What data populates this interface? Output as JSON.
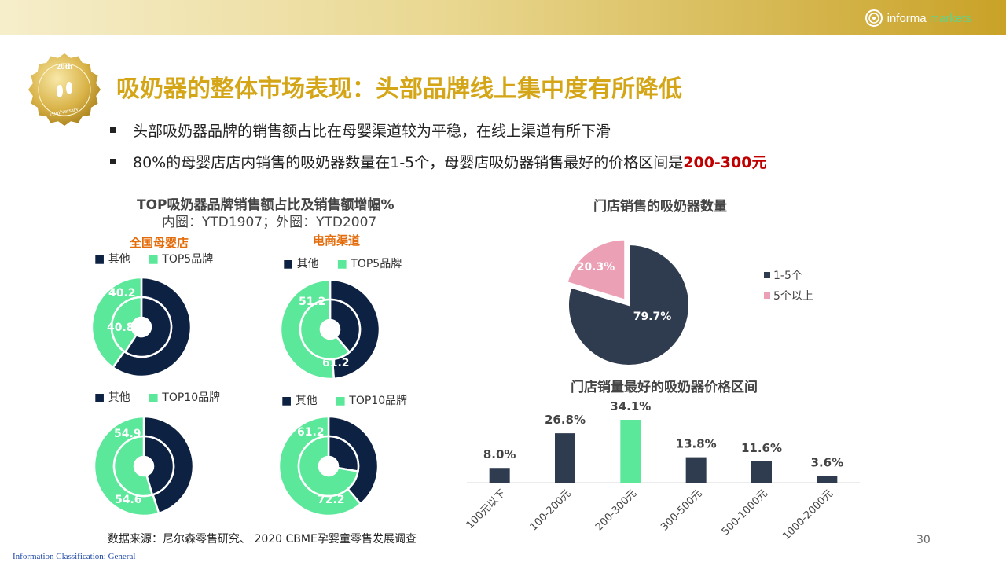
{
  "header": {
    "brand_part1": "informa",
    "brand_part2": "markets",
    "badge_text_top": "20th",
    "badge_text_bottom": "Anniversary"
  },
  "slide": {
    "title": "吸奶器的整体市场表现：头部品牌线上集中度有所降低",
    "bullet1": "头部吸奶器品牌的销售额占比在母婴渠道较为平稳，在线上渠道有所下滑",
    "bullet2_pre": "80%的母婴店店内销售的吸奶器数量在1-5个，母婴店吸奶器销售最好的价格区间是",
    "bullet2_hl": "200-300元",
    "source": "数据来源：尼尔森零售研究、 2020 CBME孕婴童零售发展调查",
    "page_number": "30",
    "classification": "Information Classification: General"
  },
  "donut_section": {
    "title": "TOP吸奶器品牌销售额占比及销售额增幅%",
    "subtitle": "内圈：YTD1907；外圈：YTD2007",
    "col1_label": "全国母婴店",
    "col2_label": "电商渠道",
    "legend_other": "其他",
    "legend_top5": "TOP5品牌",
    "legend_top10": "TOP10品牌"
  },
  "colors": {
    "navy": "#0d2143",
    "mint": "#5ce89a",
    "pink": "#eba0b5",
    "slate": "#2f3b4f",
    "orange": "#e46c0a",
    "gold": "#d4a617"
  },
  "chart_data": [
    {
      "type": "pie",
      "variant": "double-donut",
      "channel": "全国母婴店",
      "series": [
        {
          "name": "内圈 YTD1907",
          "categories": [
            "TOP5品牌",
            "其他"
          ],
          "values": [
            40.8,
            59.2
          ]
        },
        {
          "name": "外圈 YTD2007",
          "categories": [
            "TOP5品牌",
            "其他"
          ],
          "values": [
            40.2,
            59.8
          ]
        }
      ]
    },
    {
      "type": "pie",
      "variant": "double-donut",
      "channel": "电商渠道",
      "series": [
        {
          "name": "内圈 YTD1907",
          "categories": [
            "TOP5品牌",
            "其他"
          ],
          "values": [
            61.2,
            38.8
          ]
        },
        {
          "name": "外圈 YTD2007",
          "categories": [
            "TOP5品牌",
            "其他"
          ],
          "values": [
            51.2,
            48.8
          ]
        }
      ]
    },
    {
      "type": "pie",
      "variant": "double-donut",
      "channel": "全国母婴店",
      "series": [
        {
          "name": "内圈 YTD1907",
          "categories": [
            "TOP10品牌",
            "其他"
          ],
          "values": [
            54.6,
            45.4
          ]
        },
        {
          "name": "外圈 YTD2007",
          "categories": [
            "TOP10品牌",
            "其他"
          ],
          "values": [
            54.9,
            45.1
          ]
        }
      ]
    },
    {
      "type": "pie",
      "variant": "double-donut",
      "channel": "电商渠道",
      "series": [
        {
          "name": "内圈 YTD1907",
          "categories": [
            "TOP10品牌",
            "其他"
          ],
          "values": [
            72.2,
            27.8
          ]
        },
        {
          "name": "外圈 YTD2007",
          "categories": [
            "TOP10品牌",
            "其他"
          ],
          "values": [
            61.2,
            38.8
          ]
        }
      ]
    },
    {
      "type": "pie",
      "title": "门店销售的吸奶器数量",
      "categories": [
        "1-5个",
        "5个以上"
      ],
      "values": [
        79.7,
        20.3
      ],
      "labels": [
        "79.7%",
        "20.3%"
      ],
      "legend": "right"
    },
    {
      "type": "bar",
      "title": "门店销量最好的吸奶器价格区间",
      "categories": [
        "100元以下",
        "100-200元",
        "200-300元",
        "300-500元",
        "500-1000元",
        "1000-2000元"
      ],
      "values": [
        8.0,
        26.8,
        34.1,
        13.8,
        11.6,
        3.6
      ],
      "labels": [
        "8.0%",
        "26.8%",
        "34.1%",
        "13.8%",
        "11.6%",
        "3.6%"
      ],
      "highlight": "200-300元",
      "ylim": [
        0,
        34.1
      ]
    }
  ]
}
